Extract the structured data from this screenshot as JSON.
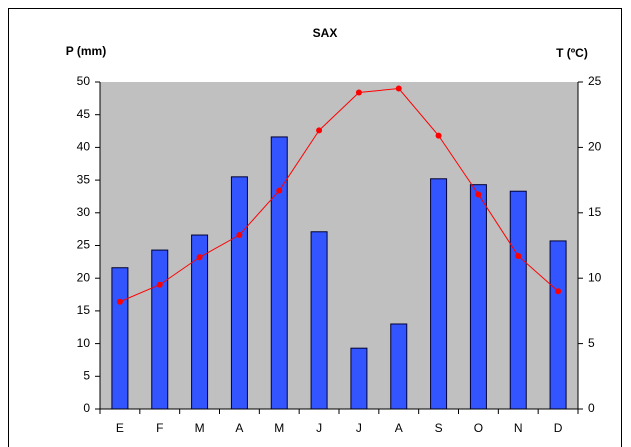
{
  "chart_data": {
    "type": "combo",
    "title": "SAX",
    "y_label": "P (mm)",
    "y2_label": "T (ºC)",
    "categories": [
      "E",
      "F",
      "M",
      "A",
      "M",
      "J",
      "J",
      "A",
      "S",
      "O",
      "N",
      "D"
    ],
    "series": [
      {
        "type": "bar",
        "color": "#3355ff",
        "values": [
          21.6,
          24.3,
          26.6,
          35.5,
          41.6,
          27.1,
          9.3,
          13.0,
          35.2,
          34.3,
          33.3,
          25.7
        ]
      },
      {
        "type": "line",
        "color": "#ff0000",
        "axis": "y2",
        "values": [
          8.2,
          9.5,
          11.6,
          13.3,
          16.7,
          21.3,
          24.2,
          24.5,
          20.9,
          16.4,
          11.7,
          9.0
        ]
      }
    ],
    "ylim": [
      0,
      50
    ],
    "yticks": [
      0,
      5,
      10,
      15,
      20,
      25,
      30,
      35,
      40,
      45,
      50
    ],
    "y2lim": [
      0,
      25
    ],
    "y2ticks": [
      0,
      5,
      10,
      15,
      20,
      25
    ],
    "plot_background": "#c0c0c0",
    "grid": false
  }
}
